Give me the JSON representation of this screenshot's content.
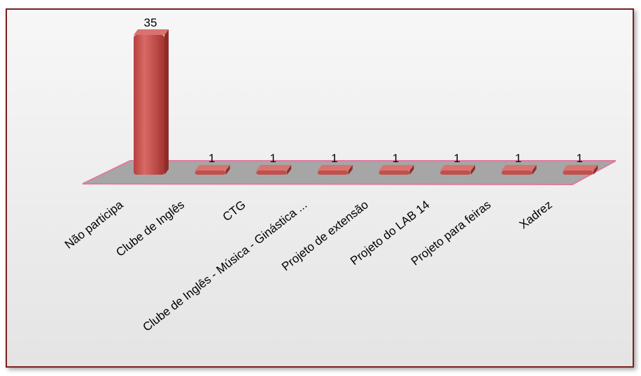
{
  "chart_data": {
    "type": "bar",
    "categories": [
      "Não participa",
      "Clube de Inglês",
      "CTG",
      "Clube de Inglês - Música - Ginástica ...",
      "Projeto de extensão",
      "Projeto do LAB 14",
      "Projeto para feiras",
      "Xadrez"
    ],
    "values": [
      35,
      1,
      1,
      1,
      1,
      1,
      1,
      1
    ],
    "ylim": [
      0,
      35
    ],
    "grid": false,
    "bar_color": "#c0504d",
    "floor_color": "#a6a6a6",
    "floor_edge_color": "#e07aa0"
  }
}
